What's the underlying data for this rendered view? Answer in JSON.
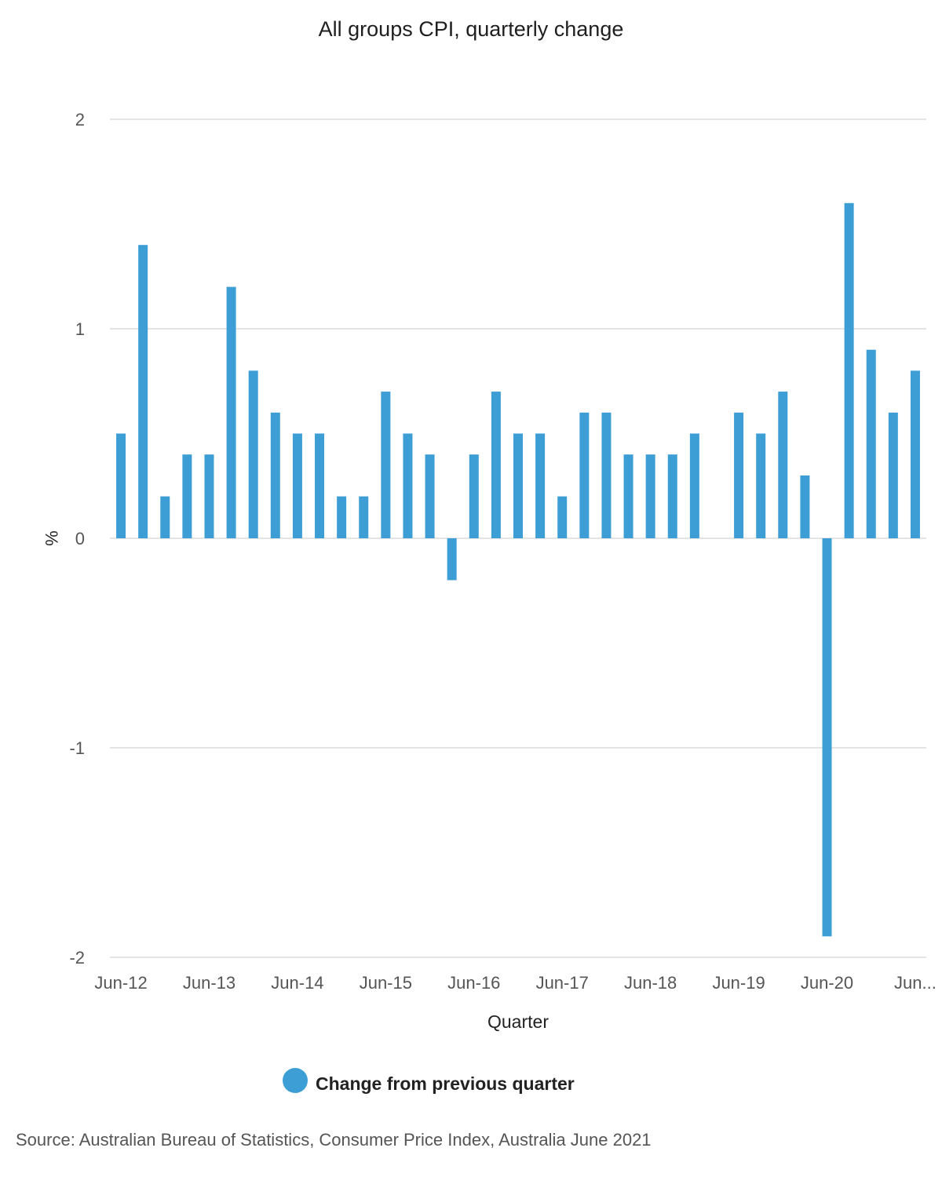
{
  "chart_data": {
    "type": "bar",
    "title": "All groups CPI, quarterly change",
    "xlabel": "Quarter",
    "ylabel": "%",
    "ylim": [
      -2,
      2
    ],
    "yticks": [
      2,
      1,
      0,
      -1,
      -2
    ],
    "tick_labels": [
      "Jun-12",
      "Jun-13",
      "Jun-14",
      "Jun-15",
      "Jun-16",
      "Jun-17",
      "Jun-18",
      "Jun-19",
      "Jun-20",
      "Jun..."
    ],
    "tick_every": 4,
    "categories": [
      "Jun-12",
      "Sep-12",
      "Dec-12",
      "Mar-13",
      "Jun-13",
      "Sep-13",
      "Dec-13",
      "Mar-14",
      "Jun-14",
      "Sep-14",
      "Dec-14",
      "Mar-15",
      "Jun-15",
      "Sep-15",
      "Dec-15",
      "Mar-16",
      "Jun-16",
      "Sep-16",
      "Dec-16",
      "Mar-17",
      "Jun-17",
      "Sep-17",
      "Dec-17",
      "Mar-18",
      "Jun-18",
      "Sep-18",
      "Dec-18",
      "Mar-19",
      "Jun-19",
      "Sep-19",
      "Dec-19",
      "Mar-20",
      "Jun-20",
      "Sep-20",
      "Dec-20",
      "Mar-21",
      "Jun-21"
    ],
    "series": [
      {
        "name": "Change from previous quarter",
        "color": "#3d9ed6",
        "values": [
          0.5,
          1.4,
          0.2,
          0.4,
          0.4,
          1.2,
          0.8,
          0.6,
          0.5,
          0.5,
          0.2,
          0.2,
          0.7,
          0.5,
          0.4,
          -0.2,
          0.4,
          0.7,
          0.5,
          0.5,
          0.2,
          0.6,
          0.6,
          0.4,
          0.4,
          0.4,
          0.5,
          0.0,
          0.6,
          0.5,
          0.7,
          0.3,
          -1.9,
          1.6,
          0.9,
          0.6,
          0.8
        ]
      }
    ],
    "grid": true,
    "legend_position": "bottom"
  },
  "legend": {
    "label": "Change from previous quarter"
  },
  "source": "Source: Australian Bureau of Statistics, Consumer Price Index, Australia June 2021"
}
